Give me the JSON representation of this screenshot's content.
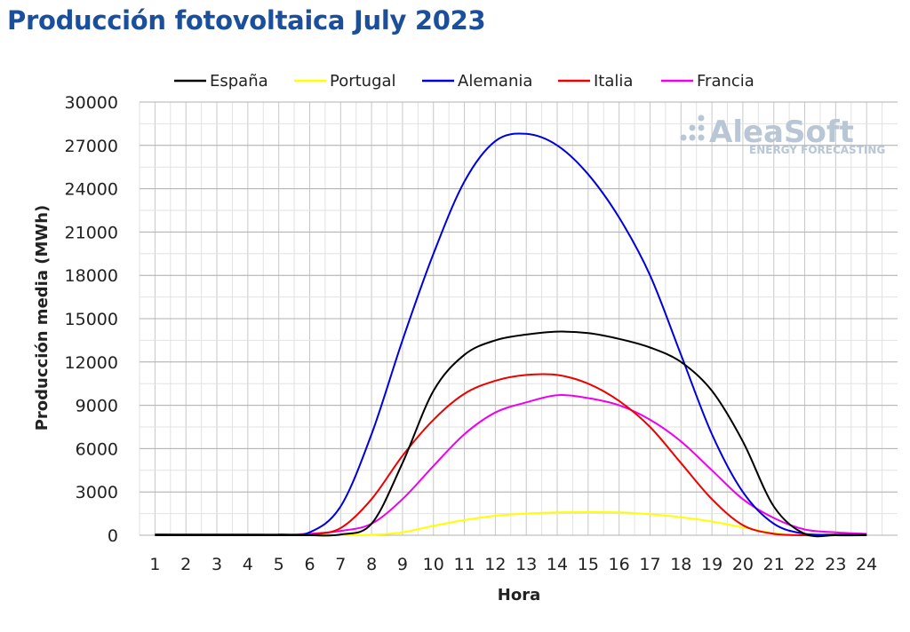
{
  "title": "Producción fotovoltaica July 2023",
  "watermark": {
    "brand": "AleaSoft",
    "tagline": "ENERGY FORECASTING",
    "color": "#b8c6d6"
  },
  "chart_data": {
    "type": "line",
    "title": "Producción fotovoltaica July 2023",
    "xlabel": "Hora",
    "ylabel": "Producción media (MWh)",
    "x": [
      1,
      2,
      3,
      4,
      5,
      6,
      7,
      8,
      9,
      10,
      11,
      12,
      13,
      14,
      15,
      16,
      17,
      18,
      19,
      20,
      21,
      22,
      23,
      24
    ],
    "ylim": [
      0,
      30000
    ],
    "yticks": [
      0,
      3000,
      6000,
      9000,
      12000,
      15000,
      18000,
      21000,
      24000,
      27000,
      30000
    ],
    "grid": true,
    "legend_position": "top",
    "series": [
      {
        "name": "España",
        "color": "#000000",
        "values": [
          0,
          0,
          0,
          0,
          0,
          0,
          50,
          800,
          5000,
          10000,
          12500,
          13500,
          13900,
          14100,
          14000,
          13600,
          13000,
          12000,
          10000,
          6500,
          2000,
          100,
          0,
          0
        ]
      },
      {
        "name": "Portugal",
        "color": "#ffff00",
        "values": [
          0,
          0,
          0,
          0,
          0,
          0,
          0,
          30,
          200,
          650,
          1050,
          1350,
          1500,
          1580,
          1600,
          1580,
          1450,
          1250,
          950,
          550,
          150,
          0,
          0,
          0
        ]
      },
      {
        "name": "Alemania",
        "color": "#0000dd",
        "values": [
          50,
          50,
          50,
          50,
          50,
          200,
          2000,
          7000,
          13500,
          19500,
          24500,
          27300,
          27800,
          27000,
          25000,
          22000,
          18000,
          12500,
          7000,
          3000,
          800,
          100,
          50,
          50
        ]
      },
      {
        "name": "Italia",
        "color": "#ee0000",
        "values": [
          0,
          0,
          0,
          0,
          0,
          50,
          500,
          2500,
          5500,
          8000,
          9800,
          10700,
          11100,
          11100,
          10500,
          9300,
          7500,
          5000,
          2500,
          700,
          100,
          0,
          0,
          0
        ]
      },
      {
        "name": "Francia",
        "color": "#ee00ee",
        "values": [
          50,
          50,
          50,
          50,
          50,
          100,
          300,
          800,
          2500,
          4800,
          7000,
          8500,
          9200,
          9700,
          9500,
          9000,
          8000,
          6500,
          4500,
          2500,
          1200,
          400,
          200,
          100
        ]
      }
    ]
  }
}
